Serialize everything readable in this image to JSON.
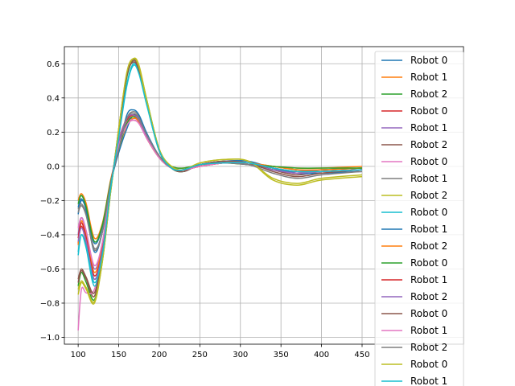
{
  "chart_data": {
    "type": "line",
    "title": "",
    "xlabel": "",
    "ylabel": "",
    "xlim": [
      83,
      575
    ],
    "ylim": [
      -1.04,
      0.7
    ],
    "x_ticks": [
      100,
      150,
      200,
      250,
      300,
      350,
      400,
      450
    ],
    "y_ticks": [
      -1.0,
      -0.8,
      -0.6,
      -0.4,
      -0.2,
      0.0,
      0.2,
      0.4,
      0.6
    ],
    "x_tick_labels": [
      "100",
      "150",
      "200",
      "250",
      "300",
      "350",
      "400",
      "450"
    ],
    "y_tick_labels": [
      "−1.0",
      "−0.8",
      "−0.6",
      "−0.4",
      "−0.2",
      "0.0",
      "0.2",
      "0.4",
      "0.6"
    ],
    "grid": true,
    "legend": "right",
    "series": [
      {
        "name": "Robot 0",
        "color": "#1f77b4",
        "x": [
          100,
          104,
          110,
          120,
          130,
          140,
          150,
          160,
          168,
          175,
          185,
          200,
          215,
          230,
          250,
          280,
          310,
          340,
          370,
          400,
          450
        ],
        "y": [
          -0.28,
          -0.2,
          -0.25,
          -0.45,
          -0.35,
          -0.1,
          0.08,
          0.22,
          0.3,
          0.27,
          0.18,
          0.06,
          -0.01,
          -0.02,
          0.01,
          0.02,
          0.01,
          -0.02,
          -0.03,
          -0.02,
          -0.01
        ]
      },
      {
        "name": "Robot 1",
        "color": "#ff7f0e",
        "x": [
          100,
          104,
          110,
          120,
          130,
          140,
          150,
          160,
          168,
          175,
          185,
          200,
          215,
          230,
          250,
          280,
          310,
          340,
          370,
          400,
          450
        ],
        "y": [
          -0.2,
          -0.16,
          -0.22,
          -0.42,
          -0.33,
          -0.08,
          0.1,
          0.24,
          0.28,
          0.26,
          0.17,
          0.06,
          0.0,
          -0.01,
          0.01,
          0.02,
          0.01,
          0.0,
          -0.01,
          -0.01,
          0.0
        ]
      },
      {
        "name": "Robot 2",
        "color": "#2ca02c",
        "x": [
          100,
          104,
          110,
          120,
          130,
          140,
          150,
          160,
          168,
          175,
          185,
          200,
          215,
          230,
          250,
          280,
          310,
          340,
          370,
          400,
          450
        ],
        "y": [
          -0.7,
          -0.62,
          -0.68,
          -0.78,
          -0.55,
          -0.15,
          0.2,
          0.52,
          0.62,
          0.58,
          0.38,
          0.1,
          -0.01,
          -0.03,
          0.01,
          0.03,
          0.02,
          0.0,
          -0.02,
          -0.02,
          -0.01
        ]
      },
      {
        "name": "Robot 0",
        "color": "#d62728",
        "x": [
          100,
          104,
          110,
          120,
          130,
          140,
          150,
          160,
          168,
          175,
          185,
          200,
          215,
          230,
          250,
          280,
          310,
          340,
          370,
          400,
          450
        ],
        "y": [
          -0.45,
          -0.35,
          -0.45,
          -0.66,
          -0.5,
          -0.12,
          0.15,
          0.28,
          0.3,
          0.27,
          0.17,
          0.05,
          -0.01,
          -0.02,
          0.0,
          0.02,
          0.02,
          -0.01,
          -0.03,
          -0.03,
          -0.02
        ]
      },
      {
        "name": "Robot 1",
        "color": "#9467bd",
        "x": [
          100,
          104,
          110,
          120,
          130,
          140,
          150,
          160,
          168,
          175,
          185,
          200,
          215,
          230,
          250,
          280,
          310,
          340,
          370,
          400,
          450
        ],
        "y": [
          -0.4,
          -0.3,
          -0.38,
          -0.6,
          -0.45,
          -0.1,
          0.12,
          0.26,
          0.29,
          0.26,
          0.16,
          0.05,
          -0.01,
          -0.02,
          0.01,
          0.02,
          0.01,
          -0.02,
          -0.04,
          -0.03,
          -0.02
        ]
      },
      {
        "name": "Robot 2",
        "color": "#8c564b",
        "x": [
          100,
          104,
          110,
          120,
          130,
          140,
          150,
          160,
          168,
          175,
          185,
          200,
          215,
          230,
          250,
          280,
          310,
          340,
          370,
          400,
          450
        ],
        "y": [
          -0.68,
          -0.61,
          -0.66,
          -0.76,
          -0.52,
          -0.14,
          0.22,
          0.54,
          0.62,
          0.57,
          0.36,
          0.09,
          -0.01,
          -0.03,
          0.01,
          0.03,
          0.02,
          -0.02,
          -0.05,
          -0.03,
          -0.02
        ]
      },
      {
        "name": "Robot 0",
        "color": "#e377c2",
        "x": [
          100,
          104,
          110,
          120,
          130,
          140,
          150,
          160,
          168,
          175,
          185,
          200,
          215,
          230,
          250,
          280,
          310,
          340,
          370,
          400,
          450
        ],
        "y": [
          -0.96,
          -0.72,
          -0.74,
          -0.72,
          -0.5,
          -0.12,
          0.15,
          0.26,
          0.27,
          0.25,
          0.16,
          0.05,
          -0.01,
          -0.02,
          0.0,
          0.02,
          0.02,
          -0.01,
          -0.04,
          -0.04,
          -0.03
        ]
      },
      {
        "name": "Robot 1",
        "color": "#7f7f7f",
        "x": [
          100,
          104,
          110,
          120,
          130,
          140,
          150,
          160,
          168,
          175,
          185,
          200,
          215,
          230,
          250,
          280,
          310,
          340,
          370,
          400,
          450
        ],
        "y": [
          -0.25,
          -0.22,
          -0.28,
          -0.48,
          -0.38,
          -0.1,
          0.1,
          0.28,
          0.32,
          0.29,
          0.18,
          0.06,
          -0.01,
          -0.02,
          0.01,
          0.02,
          0.01,
          -0.02,
          -0.03,
          -0.02,
          -0.01
        ]
      },
      {
        "name": "Robot 2",
        "color": "#bcbd22",
        "x": [
          100,
          104,
          110,
          120,
          130,
          140,
          150,
          160,
          168,
          175,
          185,
          200,
          215,
          230,
          250,
          280,
          310,
          340,
          370,
          400,
          450
        ],
        "y": [
          -0.75,
          -0.68,
          -0.72,
          -0.8,
          -0.55,
          -0.15,
          0.22,
          0.54,
          0.63,
          0.59,
          0.38,
          0.1,
          0.0,
          -0.02,
          0.02,
          0.04,
          0.03,
          -0.08,
          -0.11,
          -0.08,
          -0.06
        ]
      },
      {
        "name": "Robot 0",
        "color": "#17becf",
        "x": [
          100,
          104,
          110,
          120,
          130,
          140,
          150,
          160,
          168,
          175,
          185,
          200,
          215,
          230,
          250,
          280,
          310,
          340,
          370,
          400,
          450
        ],
        "y": [
          -0.52,
          -0.4,
          -0.48,
          -0.7,
          -0.52,
          -0.14,
          0.18,
          0.48,
          0.6,
          0.55,
          0.36,
          0.09,
          -0.01,
          -0.02,
          0.01,
          0.02,
          0.02,
          -0.01,
          -0.03,
          -0.03,
          -0.02
        ]
      },
      {
        "name": "Robot 1",
        "color": "#1f77b4",
        "x": [
          100,
          104,
          110,
          120,
          130,
          140,
          150,
          160,
          168,
          175,
          185,
          200,
          215,
          230,
          250,
          280,
          310,
          340,
          370,
          400,
          450
        ],
        "y": [
          -0.24,
          -0.19,
          -0.26,
          -0.5,
          -0.38,
          -0.1,
          0.1,
          0.3,
          0.33,
          0.3,
          0.19,
          0.06,
          -0.01,
          -0.03,
          0.01,
          0.03,
          0.03,
          -0.01,
          -0.04,
          -0.04,
          -0.03
        ]
      },
      {
        "name": "Robot 2",
        "color": "#ff7f0e",
        "x": [
          100,
          104,
          110,
          120,
          130,
          140,
          150,
          160,
          168,
          175,
          185,
          200,
          215,
          230,
          250,
          280,
          310,
          340,
          370,
          400,
          450
        ],
        "y": [
          -0.46,
          -0.32,
          -0.4,
          -0.62,
          -0.46,
          -0.12,
          0.14,
          0.28,
          0.29,
          0.26,
          0.16,
          0.05,
          -0.01,
          -0.02,
          0.0,
          0.02,
          0.02,
          0.0,
          -0.02,
          -0.02,
          -0.01
        ]
      },
      {
        "name": "Robot 0",
        "color": "#2ca02c",
        "x": [
          100,
          104,
          110,
          120,
          130,
          140,
          150,
          160,
          168,
          175,
          185,
          200,
          215,
          230,
          250,
          280,
          310,
          340,
          370,
          400,
          450
        ],
        "y": [
          -0.22,
          -0.17,
          -0.24,
          -0.44,
          -0.34,
          -0.09,
          0.1,
          0.25,
          0.29,
          0.27,
          0.17,
          0.06,
          0.0,
          -0.01,
          0.01,
          0.02,
          0.01,
          0.0,
          -0.01,
          -0.01,
          -0.01
        ]
      },
      {
        "name": "Robot 1",
        "color": "#d62728",
        "x": [
          100,
          104,
          110,
          120,
          130,
          140,
          150,
          160,
          168,
          175,
          185,
          200,
          215,
          230,
          250,
          280,
          310,
          340,
          370,
          400,
          450
        ],
        "y": [
          -0.42,
          -0.33,
          -0.42,
          -0.64,
          -0.48,
          -0.11,
          0.14,
          0.27,
          0.3,
          0.27,
          0.17,
          0.05,
          -0.01,
          -0.02,
          0.0,
          0.02,
          0.02,
          -0.01,
          -0.03,
          -0.03,
          -0.02
        ]
      },
      {
        "name": "Robot 2",
        "color": "#9467bd",
        "x": [
          100,
          104,
          110,
          120,
          130,
          140,
          150,
          160,
          168,
          175,
          185,
          200,
          215,
          230,
          250,
          280,
          310,
          340,
          370,
          400,
          450
        ],
        "y": [
          -0.44,
          -0.36,
          -0.44,
          -0.66,
          -0.49,
          -0.12,
          0.14,
          0.28,
          0.3,
          0.27,
          0.17,
          0.05,
          -0.01,
          -0.02,
          0.01,
          0.02,
          0.01,
          -0.02,
          -0.04,
          -0.03,
          -0.02
        ]
      },
      {
        "name": "Robot 0",
        "color": "#8c564b",
        "x": [
          100,
          104,
          110,
          120,
          130,
          140,
          150,
          160,
          168,
          175,
          185,
          200,
          215,
          230,
          250,
          280,
          310,
          340,
          370,
          400,
          450
        ],
        "y": [
          -0.66,
          -0.6,
          -0.65,
          -0.74,
          -0.51,
          -0.14,
          0.21,
          0.53,
          0.61,
          0.56,
          0.36,
          0.09,
          -0.01,
          -0.03,
          0.01,
          0.03,
          0.02,
          -0.03,
          -0.06,
          -0.04,
          -0.02
        ]
      },
      {
        "name": "Robot 1",
        "color": "#e377c2",
        "x": [
          100,
          104,
          110,
          120,
          130,
          140,
          150,
          160,
          168,
          175,
          185,
          200,
          215,
          230,
          250,
          280,
          310,
          340,
          370,
          400,
          450
        ],
        "y": [
          -0.36,
          -0.3,
          -0.38,
          -0.58,
          -0.44,
          -0.11,
          0.12,
          0.24,
          0.27,
          0.25,
          0.16,
          0.05,
          -0.01,
          -0.02,
          0.0,
          0.02,
          0.02,
          -0.01,
          -0.03,
          -0.03,
          -0.02
        ]
      },
      {
        "name": "Robot 2",
        "color": "#7f7f7f",
        "x": [
          100,
          104,
          110,
          120,
          130,
          140,
          150,
          160,
          168,
          175,
          185,
          200,
          215,
          230,
          250,
          280,
          310,
          340,
          370,
          400,
          450
        ],
        "y": [
          -0.27,
          -0.23,
          -0.29,
          -0.49,
          -0.38,
          -0.1,
          0.1,
          0.28,
          0.31,
          0.28,
          0.18,
          0.06,
          -0.01,
          -0.02,
          0.01,
          0.02,
          0.01,
          -0.04,
          -0.07,
          -0.05,
          -0.03
        ]
      },
      {
        "name": "Robot 0",
        "color": "#bcbd22",
        "x": [
          100,
          104,
          110,
          120,
          130,
          140,
          150,
          160,
          168,
          175,
          185,
          200,
          215,
          230,
          250,
          280,
          310,
          340,
          370,
          400,
          450
        ],
        "y": [
          -0.72,
          -0.67,
          -0.71,
          -0.79,
          -0.54,
          -0.15,
          0.22,
          0.55,
          0.63,
          0.58,
          0.37,
          0.1,
          0.0,
          -0.02,
          0.02,
          0.04,
          0.03,
          -0.07,
          -0.1,
          -0.07,
          -0.05
        ]
      },
      {
        "name": "Robot 1",
        "color": "#17becf",
        "x": [
          100,
          104,
          110,
          120,
          130,
          140,
          150,
          160,
          168,
          175,
          185,
          200,
          215,
          230,
          250,
          280,
          310,
          340,
          370,
          400,
          450
        ],
        "y": [
          -0.5,
          -0.4,
          -0.47,
          -0.68,
          -0.51,
          -0.13,
          0.17,
          0.47,
          0.59,
          0.54,
          0.35,
          0.09,
          -0.01,
          -0.02,
          0.01,
          0.02,
          0.02,
          -0.01,
          -0.03,
          -0.03,
          -0.02
        ]
      }
    ]
  }
}
